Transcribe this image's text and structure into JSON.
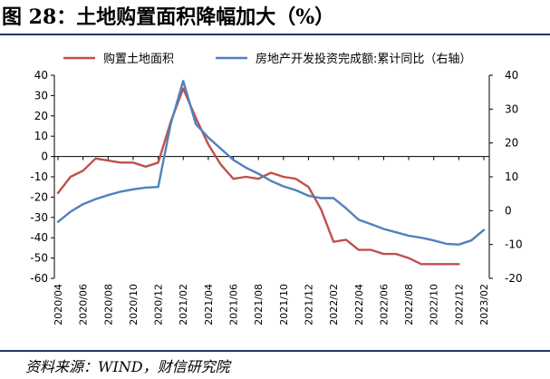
{
  "header": {
    "title": "图 28：土地购置面积降幅加大（%）"
  },
  "footer": {
    "source": "资料来源：WIND，财信研究院"
  },
  "chart_data": {
    "type": "line",
    "title": "图 28：土地购置面积降幅加大（%）",
    "x_ticks": [
      "2020/04",
      "2020/06",
      "2020/08",
      "2020/10",
      "2020/12",
      "2021/02",
      "2021/04",
      "2021/06",
      "2021/08",
      "2021/10",
      "2021/12",
      "2022/02",
      "2022/04",
      "2022/06",
      "2022/08",
      "2022/10",
      "2022/12",
      "2023/02"
    ],
    "y_left": {
      "min": -60,
      "max": 40,
      "ticks": [
        40,
        30,
        20,
        10,
        0,
        -10,
        -20,
        -30,
        -40,
        -50,
        -60
      ]
    },
    "y_right": {
      "min": -20,
      "max": 40,
      "ticks": [
        40,
        30,
        20,
        10,
        0,
        -10,
        -20
      ]
    },
    "legend_position": "top",
    "grid": false,
    "series": [
      {
        "name": "购置土地面积",
        "axis": "left",
        "color": "#c0504d",
        "x": [
          "2020/04",
          "2020/05",
          "2020/06",
          "2020/07",
          "2020/08",
          "2020/09",
          "2020/10",
          "2020/11",
          "2020/12",
          "2021/01",
          "2021/02",
          "2021/03",
          "2021/04",
          "2021/05",
          "2021/06",
          "2021/07",
          "2021/08",
          "2021/09",
          "2021/10",
          "2021/11",
          "2021/12",
          "2022/01",
          "2022/02",
          "2022/03",
          "2022/04",
          "2022/05",
          "2022/06",
          "2022/07",
          "2022/08",
          "2022/09",
          "2022/10",
          "2022/11",
          "2022/12"
        ],
        "values": [
          -18,
          -10,
          -7,
          -1,
          -2,
          -3,
          -3,
          -5,
          -3,
          17,
          33.5,
          19,
          6,
          -4,
          -11,
          -10,
          -11,
          -8,
          -10,
          -11,
          -15,
          -26,
          -42,
          -41,
          -46,
          -46,
          -48,
          -48,
          -50,
          -53,
          -53,
          -53,
          -53
        ]
      },
      {
        "name": "房地产开发投资完成额:累计同比（右轴）",
        "axis": "right",
        "color": "#4f81bd",
        "x": [
          "2020/04",
          "2020/05",
          "2020/06",
          "2020/07",
          "2020/08",
          "2020/09",
          "2020/10",
          "2020/11",
          "2020/12",
          "2021/01",
          "2021/02",
          "2021/03",
          "2021/04",
          "2021/05",
          "2021/06",
          "2021/07",
          "2021/08",
          "2021/09",
          "2021/10",
          "2021/11",
          "2021/12",
          "2022/01",
          "2022/02",
          "2022/03",
          "2022/04",
          "2022/05",
          "2022/06",
          "2022/07",
          "2022/08",
          "2022/09",
          "2022/10",
          "2022/11",
          "2022/12",
          "2023/01",
          "2023/02"
        ],
        "values": [
          -3.3,
          -0.3,
          1.9,
          3.4,
          4.6,
          5.6,
          6.3,
          6.8,
          7,
          25.6,
          38.3,
          25.6,
          21.6,
          18.3,
          15,
          12.7,
          10.9,
          8.8,
          7.2,
          6,
          4.4,
          3.7,
          3.7,
          0.7,
          -2.7,
          -4,
          -5.4,
          -6.4,
          -7.4,
          -8,
          -8.8,
          -9.8,
          -10,
          -8.8,
          -5.7
        ]
      }
    ]
  }
}
